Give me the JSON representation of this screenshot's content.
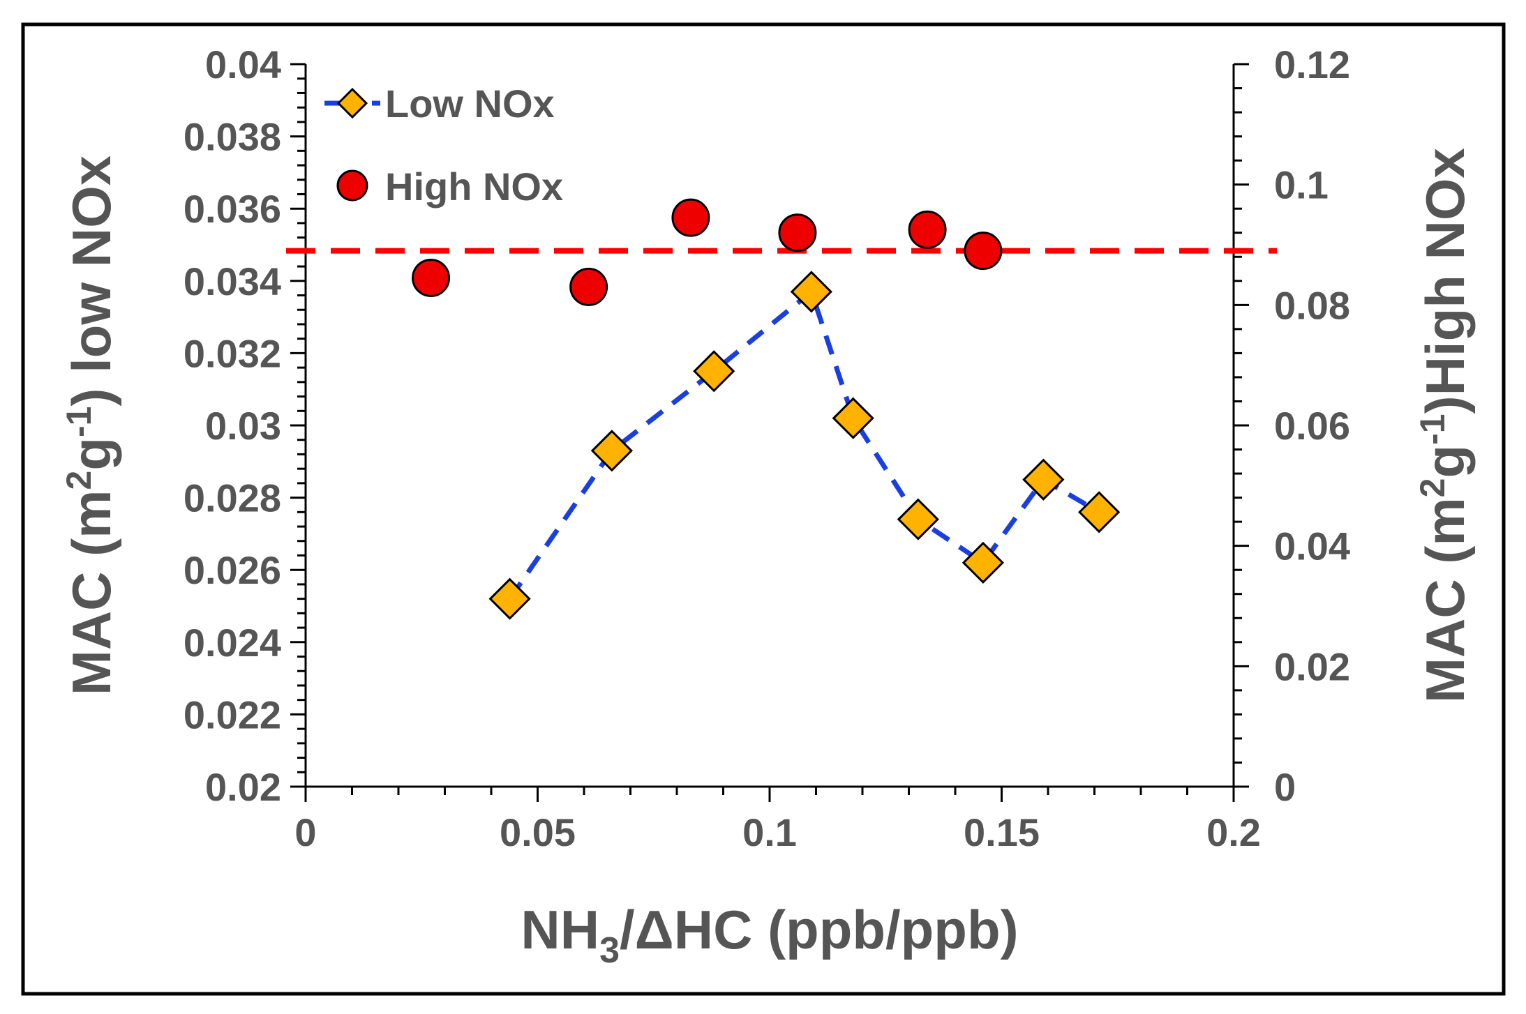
{
  "chart_data": {
    "type": "scatter",
    "title": "",
    "xlabel": {
      "main": "NH",
      "sub": "3",
      "rest": "/ΔHC  (ppb/ppb)"
    },
    "ylabel_left": {
      "a": "MAC (m",
      "sup1": "2",
      "b": "g",
      "sup2": "-1",
      "c": ") low NOx"
    },
    "ylabel_right": {
      "a": "MAC (m",
      "sup1": "2",
      "b": "g",
      "sup2": "-1",
      "c": ")High NOx"
    },
    "xlim": [
      0,
      0.2
    ],
    "ylim_left": [
      0.02,
      0.04
    ],
    "ylim_right": [
      0,
      0.12
    ],
    "x_ticks": [
      "0",
      "0.05",
      "0.1",
      "0.15",
      "0.2"
    ],
    "x_tick_values": [
      0,
      0.05,
      0.1,
      0.15,
      0.2
    ],
    "y_left_ticks": [
      "0.04",
      "0.038",
      "0.036",
      "0.034",
      "0.032",
      "0.03",
      "0.028",
      "0.026",
      "0.024",
      "0.022",
      "0.02"
    ],
    "y_left_tick_values": [
      0.04,
      0.038,
      0.036,
      0.034,
      0.032,
      0.03,
      0.028,
      0.026,
      0.024,
      0.022,
      0.02
    ],
    "y_right_ticks": [
      "0.12",
      "0.1",
      "0.08",
      "0.06",
      "0.04",
      "0.02",
      "0"
    ],
    "y_right_tick_values": [
      0.12,
      0.1,
      0.08,
      0.06,
      0.04,
      0.02,
      0
    ],
    "series": [
      {
        "name": "Low NOx",
        "axis": "left",
        "marker": "diamond",
        "line": "dashed",
        "color": "#FFB300",
        "line_color": "#1a3fe0",
        "x": [
          0.044,
          0.066,
          0.088,
          0.109,
          0.118,
          0.132,
          0.146,
          0.159,
          0.171
        ],
        "y": [
          0.0252,
          0.0293,
          0.0315,
          0.0337,
          0.0302,
          0.0274,
          0.0262,
          0.0285,
          0.0276
        ]
      },
      {
        "name": "High NOx",
        "axis": "right",
        "marker": "circle",
        "color": "#ee0000",
        "x": [
          0.027,
          0.061,
          0.083,
          0.106,
          0.134,
          0.146
        ],
        "y": [
          0.0845,
          0.083,
          0.0945,
          0.092,
          0.0925,
          0.089
        ]
      }
    ],
    "reference_line": {
      "axis": "right",
      "y": 0.089,
      "style": "dashed",
      "color": "#ff0000"
    },
    "legend": {
      "position": "top-left",
      "entries": [
        "Low NOx",
        "High NOx"
      ]
    }
  }
}
